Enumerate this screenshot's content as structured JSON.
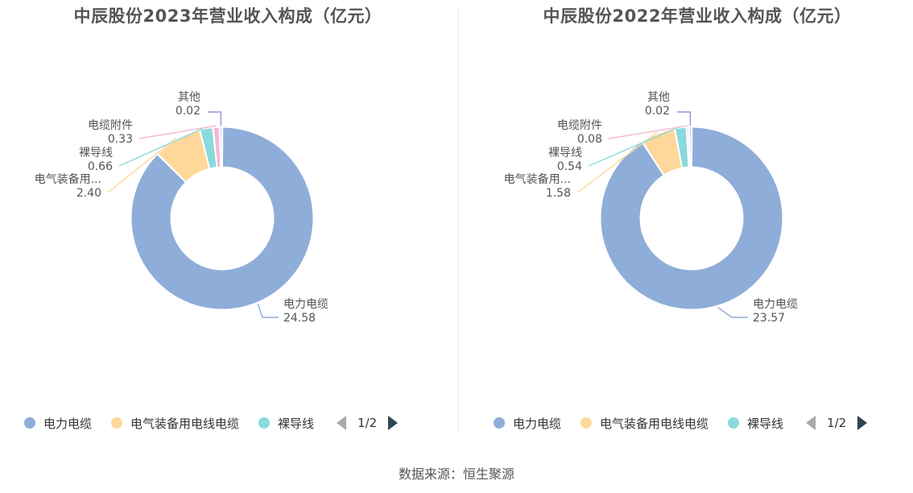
{
  "source_label": "数据来源：恒生聚源",
  "colors": {
    "power_cable": "#8fadd9",
    "electrical_cable": "#fdd89a",
    "bare_wire": "#8ad9dc",
    "accessories": "#f4b6d2",
    "other": "#9c8fe0"
  },
  "chart_data": [
    {
      "type": "pie",
      "title": "中辰股份2023年营业收入构成（亿元）",
      "slices": [
        {
          "label": "电力电缆",
          "short_label": "电力电缆",
          "value": 24.58,
          "value_label": "24.58",
          "color": "#8fadd9"
        },
        {
          "label": "电气装备用电线电缆",
          "short_label": "电气装备用...",
          "value": 2.4,
          "value_label": "2.40",
          "color": "#fdd89a"
        },
        {
          "label": "裸导线",
          "short_label": "裸导线",
          "value": 0.66,
          "value_label": "0.66",
          "color": "#8ad9dc"
        },
        {
          "label": "电缆附件",
          "short_label": "电缆附件",
          "value": 0.33,
          "value_label": "0.33",
          "color": "#f4b6d2"
        },
        {
          "label": "其他",
          "short_label": "其他",
          "value": 0.02,
          "value_label": "0.02",
          "color": "#9c8fe0"
        }
      ],
      "legend": {
        "items": [
          "电力电缆",
          "电气装备用电线电缆",
          "裸导线"
        ],
        "page": "1/2"
      }
    },
    {
      "type": "pie",
      "title": "中辰股份2022年营业收入构成（亿元）",
      "slices": [
        {
          "label": "电力电缆",
          "short_label": "电力电缆",
          "value": 23.57,
          "value_label": "23.57",
          "color": "#8fadd9"
        },
        {
          "label": "电气装备用电线电缆",
          "short_label": "电气装备用...",
          "value": 1.58,
          "value_label": "1.58",
          "color": "#fdd89a"
        },
        {
          "label": "裸导线",
          "short_label": "裸导线",
          "value": 0.54,
          "value_label": "0.54",
          "color": "#8ad9dc"
        },
        {
          "label": "电缆附件",
          "short_label": "电缆附件",
          "value": 0.08,
          "value_label": "0.08",
          "color": "#f4b6d2"
        },
        {
          "label": "其他",
          "short_label": "其他",
          "value": 0.02,
          "value_label": "0.02",
          "color": "#9c8fe0"
        }
      ],
      "legend": {
        "items": [
          "电力电缆",
          "电气装备用电线电缆",
          "裸导线"
        ],
        "page": "1/2"
      }
    }
  ]
}
